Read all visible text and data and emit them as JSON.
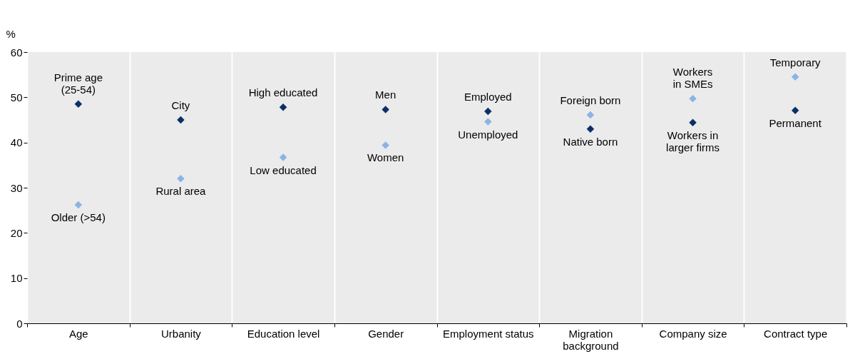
{
  "chart_data": {
    "type": "scatter",
    "ylabel": "%",
    "categories": [
      "Age",
      "Urbanity",
      "Education level",
      "Gender",
      "Employment status",
      "Migration background",
      "Company size",
      "Contract type"
    ],
    "series": [
      {
        "color": "#0b2f66",
        "values": [
          48.5,
          45.0,
          47.8,
          47.3,
          46.9,
          43.0,
          44.4,
          47.1
        ]
      },
      {
        "color": "#8db3e2",
        "values": [
          26.2,
          32.0,
          36.7,
          39.4,
          44.6,
          46.1,
          49.7,
          54.5
        ]
      }
    ],
    "annotations": [
      {
        "text": "Prime age\n(25-54)",
        "x": "Age",
        "y": 48.5
      },
      {
        "text": "Older (>54)",
        "x": "Age",
        "y": 26.2
      },
      {
        "text": "City",
        "x": "Urbanity",
        "y": 45.0
      },
      {
        "text": "Rural area",
        "x": "Urbanity",
        "y": 32.0
      },
      {
        "text": "High educated",
        "x": "Education level",
        "y": 47.8
      },
      {
        "text": "Low educated",
        "x": "Education level",
        "y": 36.7
      },
      {
        "text": "Men",
        "x": "Gender",
        "y": 47.3
      },
      {
        "text": "Women",
        "x": "Gender",
        "y": 39.4
      },
      {
        "text": "Employed",
        "x": "Employment status",
        "y": 46.9
      },
      {
        "text": "Unemployed",
        "x": "Employment status",
        "y": 44.6
      },
      {
        "text": "Native born",
        "x": "Migration background",
        "y": 43.0
      },
      {
        "text": "Foreign born",
        "x": "Migration background",
        "y": 46.1
      },
      {
        "text": "Workers in\nlarger  firms",
        "x": "Company size",
        "y": 44.4
      },
      {
        "text": "Workers\nin SMEs",
        "x": "Company size",
        "y": 49.7
      },
      {
        "text": "Permanent",
        "x": "Contract type",
        "y": 47.1
      },
      {
        "text": "Temporary",
        "x": "Contract type",
        "y": 54.5
      }
    ],
    "ylim": [
      0,
      60
    ],
    "yticks": [
      0,
      10,
      20,
      30,
      40,
      50,
      60
    ],
    "grid": "x",
    "marker": "diamond",
    "legend": false
  }
}
